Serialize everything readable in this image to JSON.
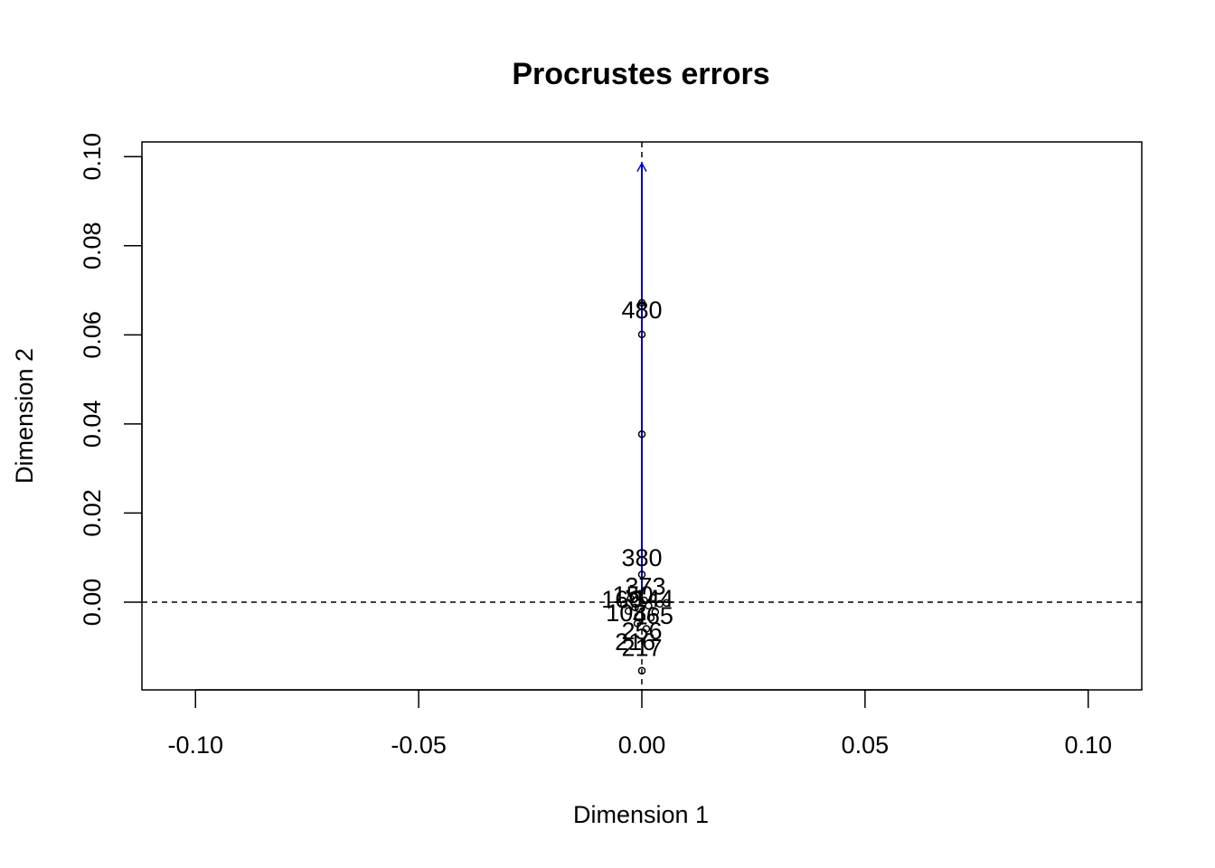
{
  "chart_data": {
    "type": "scatter",
    "title": "Procrustes errors",
    "xlabel": "Dimension 1",
    "ylabel": "Dimension 2",
    "xlim": [
      -0.112,
      0.112
    ],
    "ylim": [
      -0.0197,
      0.1033
    ],
    "x_ticks": [
      -0.1,
      -0.05,
      0.0,
      0.05,
      0.1
    ],
    "x_tick_labels": [
      "-0.10",
      "-0.05",
      "0.00",
      "0.05",
      "0.10"
    ],
    "y_ticks": [
      0.0,
      0.02,
      0.04,
      0.06,
      0.08,
      0.1
    ],
    "y_tick_labels": [
      "0.00",
      "0.02",
      "0.04",
      "0.06",
      "0.08",
      "0.10"
    ],
    "reference_lines": {
      "x": 0.0,
      "y": 0.0,
      "style": "dashed"
    },
    "arrow": {
      "from": [
        0.0,
        0.0
      ],
      "to": [
        0.0,
        0.0985
      ],
      "color": "#0000cc"
    },
    "grid": false,
    "points": [
      {
        "x": 0.0,
        "y": 0.0672
      },
      {
        "x": 0.0,
        "y": 0.0664
      },
      {
        "x": 0.0,
        "y": 0.0601
      },
      {
        "x": 0.0,
        "y": 0.0377
      },
      {
        "x": 0.0,
        "y": 0.0062
      },
      {
        "x": 0.0,
        "y": -0.0154
      },
      {
        "x": -0.004,
        "y": -0.0005
      },
      {
        "x": -0.0025,
        "y": 0.0008
      },
      {
        "x": -0.0015,
        "y": -0.0012
      },
      {
        "x": 0.0005,
        "y": 0.0004
      },
      {
        "x": 0.0015,
        "y": -0.0008
      },
      {
        "x": 0.0025,
        "y": 0.001
      },
      {
        "x": 0.004,
        "y": -0.0004
      },
      {
        "x": 0.0055,
        "y": -0.0002
      },
      {
        "x": -0.003,
        "y": -0.002
      },
      {
        "x": 0.003,
        "y": -0.0022
      },
      {
        "x": -0.001,
        "y": -0.0048
      },
      {
        "x": 0.001,
        "y": -0.006
      },
      {
        "x": 0.002,
        "y": -0.0035
      },
      {
        "x": -0.002,
        "y": 0.0015
      }
    ],
    "labels": [
      {
        "text": "480",
        "x": 0.0,
        "y": 0.0652
      },
      {
        "text": "380",
        "x": 0.0,
        "y": 0.0096
      },
      {
        "text": "373",
        "x": 0.0008,
        "y": 0.0032
      },
      {
        "text": "166",
        "x": -0.0045,
        "y": 0.0002
      },
      {
        "text": "150",
        "x": -0.002,
        "y": 0.0012
      },
      {
        "text": "144",
        "x": 0.0025,
        "y": 0.0004
      },
      {
        "text": "108",
        "x": -0.0035,
        "y": -0.0028
      },
      {
        "text": "465",
        "x": 0.0025,
        "y": -0.0034
      },
      {
        "text": "256",
        "x": 0.0,
        "y": -0.0069
      },
      {
        "text": "216",
        "x": -0.0015,
        "y": -0.0093
      },
      {
        "text": "217",
        "x": 0.0,
        "y": -0.0106
      }
    ]
  }
}
